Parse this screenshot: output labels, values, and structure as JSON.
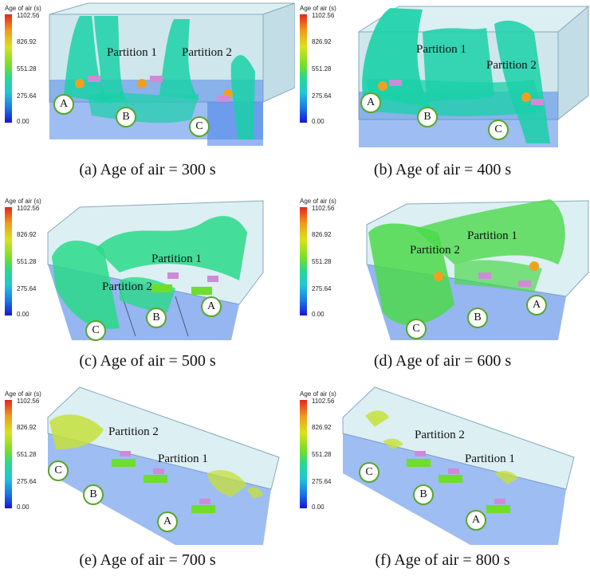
{
  "legend": {
    "title": "Age of air (s)",
    "ticks": [
      "1102.56",
      "826.92",
      "551.28",
      "275.64",
      "0.00"
    ],
    "colormap": [
      "#e3261c",
      "#f39a1a",
      "#d8e31a",
      "#6ede2a",
      "#2ad98a",
      "#1ec8d6",
      "#1a7be6",
      "#1616d8"
    ]
  },
  "colors": {
    "room_fill": "#cfe6ec",
    "floor_fill": "#4f86e8",
    "iso_teal": "#1ad0a8",
    "iso_green": "#4cd94a",
    "iso_yellow": "#c6e03a",
    "badge_border": "#5aa62c"
  },
  "panels": [
    {
      "caption": "(a) Age of air = 300 s",
      "partition1": "Partition 1",
      "partition2": "Partition 2",
      "a": "A",
      "b": "B",
      "c": "C"
    },
    {
      "caption": "(b) Age of air = 400 s",
      "partition1": "Partition 1",
      "partition2": "Partition 2",
      "a": "A",
      "b": "B",
      "c": "C"
    },
    {
      "caption": "(c) Age of air = 500 s",
      "partition1": "Partition 1",
      "partition2": "Partition 2",
      "a": "A",
      "b": "B",
      "c": "C"
    },
    {
      "caption": "(d) Age of air = 600 s",
      "partition1": "Partition 1",
      "partition2": "Partition 2",
      "a": "A",
      "b": "B",
      "c": "C"
    },
    {
      "caption": "(e) Age of air = 700 s",
      "partition1": "Partition 1",
      "partition2": "Partition 2",
      "a": "A",
      "b": "B",
      "c": "C"
    },
    {
      "caption": "(f) Age of air = 800 s",
      "partition1": "Partition 1",
      "partition2": "Partition 2",
      "a": "A",
      "b": "B",
      "c": "C"
    }
  ]
}
